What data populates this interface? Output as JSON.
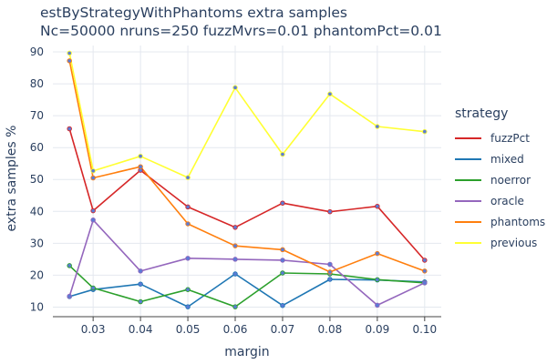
{
  "chart_data": {
    "type": "line",
    "title": "estByStrategyWithPhantoms extra samples",
    "subtitle": "Nc=50000 nruns=250 fuzzMvrs=0.01 phantomPct=0.01",
    "xlabel": "margin",
    "ylabel": "extra samples %",
    "xlim": [
      0.0215,
      0.1035
    ],
    "ylim": [
      7,
      92
    ],
    "x": [
      0.025,
      0.03,
      0.04,
      0.05,
      0.06,
      0.07,
      0.08,
      0.09,
      0.1
    ],
    "x_ticks": [
      0.03,
      0.04,
      0.05,
      0.06,
      0.07,
      0.08,
      0.09,
      0.1
    ],
    "x_tick_labels": [
      "0.03",
      "0.04",
      "0.05",
      "0.06",
      "0.07",
      "0.08",
      "0.09",
      "0.10"
    ],
    "y_ticks": [
      10,
      20,
      30,
      40,
      50,
      60,
      70,
      80,
      90
    ],
    "grid": true,
    "legend_title": "strategy",
    "legend_position": "right",
    "marker_color": "#5b7bd5",
    "series": [
      {
        "name": "fuzzPct",
        "color": "#d62728",
        "values": [
          65.9,
          40.2,
          52.9,
          41.4,
          35.0,
          42.6,
          39.9,
          41.6,
          24.7
        ]
      },
      {
        "name": "mixed",
        "color": "#1f77b4",
        "values": [
          13.3,
          15.5,
          17.2,
          10.1,
          20.4,
          10.5,
          18.7,
          18.5,
          17.9
        ]
      },
      {
        "name": "noerror",
        "color": "#2ca02c",
        "values": [
          23.0,
          16.0,
          11.7,
          15.5,
          10.1,
          20.7,
          20.4,
          18.6,
          17.6
        ]
      },
      {
        "name": "oracle",
        "color": "#9467bd",
        "values": [
          13.4,
          37.3,
          21.3,
          25.3,
          25.0,
          24.7,
          23.4,
          10.6,
          17.6
        ]
      },
      {
        "name": "phantoms",
        "color": "#ff7f0e",
        "values": [
          87.2,
          50.5,
          54.0,
          36.1,
          29.2,
          28.0,
          21.0,
          26.8,
          21.3
        ]
      },
      {
        "name": "previous",
        "color": "#ffff33",
        "values": [
          89.6,
          52.7,
          57.3,
          50.6,
          78.8,
          57.9,
          76.8,
          66.6,
          65.0
        ]
      }
    ]
  }
}
